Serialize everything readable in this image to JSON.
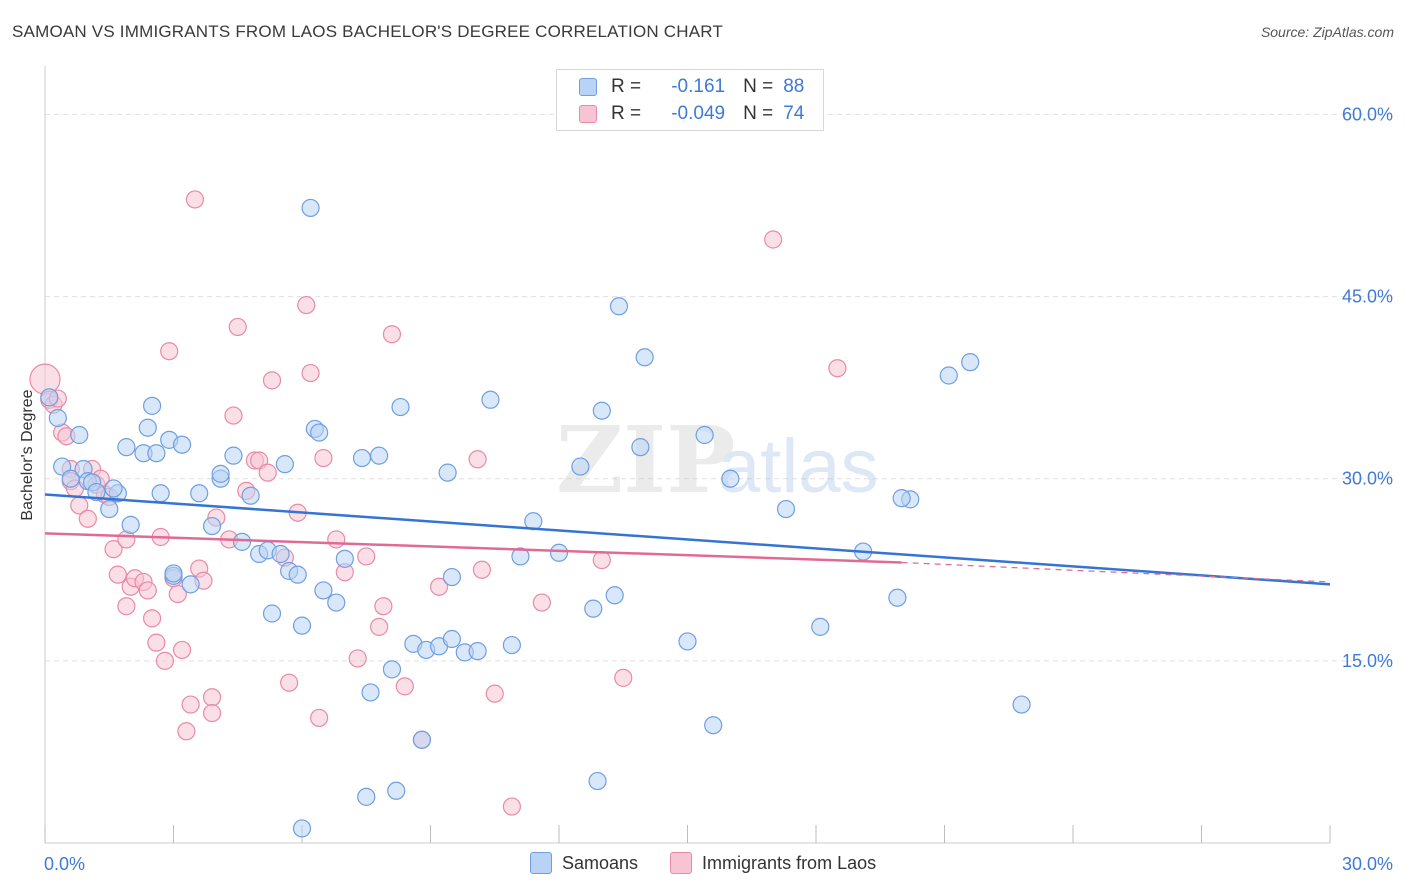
{
  "title": "SAMOAN VS IMMIGRANTS FROM LAOS BACHELOR'S DEGREE CORRELATION CHART",
  "source": "Source: ZipAtlas.com",
  "watermark": {
    "zip": "ZIP",
    "atlas": "atlas"
  },
  "legend": {
    "rows": [
      {
        "r_label": "R =",
        "r_value": "-0.161",
        "n_label": "N =",
        "n_value": "88"
      },
      {
        "r_label": "R =",
        "r_value": "-0.049",
        "n_label": "N =",
        "n_value": "74"
      }
    ]
  },
  "bottom_legend": [
    "Samoans",
    "Immigrants from Laos"
  ],
  "colors": {
    "blue_fill": "#b8d3f4",
    "blue_stroke": "#6f9fe0",
    "blue_line": "#3474d4",
    "pink_fill": "#f7c4d4",
    "pink_stroke": "#e88aa8",
    "pink_line": "#e06a94",
    "grid": "#e0e0e0",
    "tick_text": "#3f7ad6"
  },
  "chart_data": {
    "type": "scatter",
    "title": "SAMOAN VS IMMIGRANTS FROM LAOS BACHELOR'S DEGREE CORRELATION CHART",
    "xlabel": "",
    "ylabel": "Bachelor's Degree",
    "xlim": [
      0,
      30
    ],
    "ylim": [
      0,
      63
    ],
    "x_tick_labels": [
      "0.0%",
      "30.0%"
    ],
    "y_ticks": [
      15,
      30,
      45,
      60
    ],
    "y_tick_labels": [
      "15.0%",
      "30.0%",
      "45.0%",
      "60.0%"
    ],
    "grid": true,
    "legend_position": "top-center",
    "series": [
      {
        "name": "Samoans",
        "r": -0.161,
        "n": 88,
        "trend": {
          "x": [
            0,
            30
          ],
          "y": [
            28.7,
            21.3
          ]
        },
        "points": [
          [
            0.1,
            36.7
          ],
          [
            0.3,
            35.0
          ],
          [
            0.4,
            31.0
          ],
          [
            0.6,
            30.0
          ],
          [
            0.8,
            33.6
          ],
          [
            0.9,
            30.8
          ],
          [
            1.0,
            29.8
          ],
          [
            1.1,
            29.7
          ],
          [
            1.2,
            28.9
          ],
          [
            1.5,
            27.5
          ],
          [
            1.7,
            28.8
          ],
          [
            1.9,
            32.6
          ],
          [
            2.0,
            26.2
          ],
          [
            2.3,
            32.1
          ],
          [
            2.4,
            34.2
          ],
          [
            2.5,
            36.0
          ],
          [
            2.6,
            32.1
          ],
          [
            2.7,
            28.8
          ],
          [
            2.9,
            33.2
          ],
          [
            3.0,
            22.0
          ],
          [
            3.2,
            32.8
          ],
          [
            3.4,
            21.3
          ],
          [
            3.6,
            28.8
          ],
          [
            3.9,
            26.1
          ],
          [
            4.1,
            30.0
          ],
          [
            4.1,
            30.4
          ],
          [
            4.4,
            31.9
          ],
          [
            4.6,
            24.8
          ],
          [
            4.8,
            28.6
          ],
          [
            5.0,
            23.8
          ],
          [
            5.2,
            24.1
          ],
          [
            5.3,
            18.9
          ],
          [
            5.5,
            23.8
          ],
          [
            5.6,
            31.2
          ],
          [
            5.7,
            22.4
          ],
          [
            6.0,
            17.9
          ],
          [
            6.2,
            52.3
          ],
          [
            6.3,
            34.1
          ],
          [
            6.4,
            33.8
          ],
          [
            6.5,
            20.8
          ],
          [
            6.8,
            19.8
          ],
          [
            7.0,
            23.4
          ],
          [
            7.4,
            31.7
          ],
          [
            7.6,
            12.4
          ],
          [
            7.8,
            31.9
          ],
          [
            8.1,
            14.3
          ],
          [
            8.3,
            35.9
          ],
          [
            8.6,
            16.4
          ],
          [
            8.8,
            8.5
          ],
          [
            8.9,
            15.9
          ],
          [
            9.2,
            16.2
          ],
          [
            9.4,
            30.5
          ],
          [
            9.5,
            21.9
          ],
          [
            9.8,
            15.7
          ],
          [
            10.1,
            15.8
          ],
          [
            10.4,
            36.5
          ],
          [
            10.9,
            16.3
          ],
          [
            11.1,
            23.6
          ],
          [
            11.4,
            26.5
          ],
          [
            12.0,
            23.9
          ],
          [
            12.5,
            31.0
          ],
          [
            13.0,
            35.6
          ],
          [
            12.8,
            19.3
          ],
          [
            13.3,
            20.4
          ],
          [
            13.4,
            44.2
          ],
          [
            14.0,
            40.0
          ],
          [
            13.9,
            32.6
          ],
          [
            15.0,
            16.6
          ],
          [
            15.4,
            33.6
          ],
          [
            15.6,
            9.7
          ],
          [
            16.0,
            30.0
          ],
          [
            17.3,
            27.5
          ],
          [
            18.1,
            17.8
          ],
          [
            19.1,
            24.0
          ],
          [
            19.9,
            20.2
          ],
          [
            20.2,
            28.3
          ],
          [
            21.1,
            38.5
          ],
          [
            21.6,
            39.6
          ],
          [
            22.8,
            11.4
          ],
          [
            20.0,
            28.4
          ],
          [
            7.5,
            3.8
          ],
          [
            9.5,
            16.8
          ],
          [
            8.2,
            4.3
          ],
          [
            12.9,
            5.1
          ],
          [
            6.0,
            1.2
          ],
          [
            3.0,
            22.2
          ],
          [
            5.9,
            22.1
          ],
          [
            1.6,
            29.2
          ]
        ]
      },
      {
        "name": "Immigrants from Laos",
        "r": -0.049,
        "n": 74,
        "trend": {
          "x": [
            0,
            20
          ],
          "y": [
            25.5,
            23.1
          ],
          "dashed_to": {
            "x": 30,
            "y": 21.5
          }
        },
        "points": [
          [
            0.0,
            38.2
          ],
          [
            0.1,
            36.5
          ],
          [
            0.2,
            36.1
          ],
          [
            0.3,
            36.6
          ],
          [
            0.4,
            33.8
          ],
          [
            0.5,
            33.5
          ],
          [
            0.6,
            30.8
          ],
          [
            0.6,
            29.8
          ],
          [
            0.7,
            29.2
          ],
          [
            0.8,
            27.8
          ],
          [
            1.0,
            26.7
          ],
          [
            1.1,
            30.8
          ],
          [
            1.2,
            29.5
          ],
          [
            1.3,
            30.0
          ],
          [
            1.4,
            28.7
          ],
          [
            1.5,
            28.5
          ],
          [
            1.6,
            24.2
          ],
          [
            1.7,
            22.1
          ],
          [
            1.9,
            19.5
          ],
          [
            1.9,
            25.0
          ],
          [
            2.0,
            21.1
          ],
          [
            2.1,
            21.8
          ],
          [
            2.3,
            21.5
          ],
          [
            2.4,
            20.8
          ],
          [
            2.5,
            18.5
          ],
          [
            2.6,
            16.5
          ],
          [
            2.7,
            25.2
          ],
          [
            2.8,
            15.0
          ],
          [
            2.9,
            40.5
          ],
          [
            3.0,
            21.8
          ],
          [
            3.1,
            20.5
          ],
          [
            3.2,
            15.9
          ],
          [
            3.3,
            9.2
          ],
          [
            3.4,
            11.4
          ],
          [
            3.5,
            53.0
          ],
          [
            3.6,
            22.6
          ],
          [
            3.7,
            21.6
          ],
          [
            3.9,
            12.0
          ],
          [
            3.9,
            10.7
          ],
          [
            4.0,
            26.8
          ],
          [
            4.3,
            25.0
          ],
          [
            4.4,
            35.2
          ],
          [
            4.5,
            42.5
          ],
          [
            4.7,
            29.0
          ],
          [
            4.9,
            31.5
          ],
          [
            5.0,
            31.5
          ],
          [
            5.2,
            30.5
          ],
          [
            5.3,
            38.1
          ],
          [
            5.6,
            23.5
          ],
          [
            5.7,
            13.2
          ],
          [
            5.9,
            27.2
          ],
          [
            6.1,
            44.3
          ],
          [
            6.2,
            38.7
          ],
          [
            6.4,
            10.3
          ],
          [
            6.5,
            31.7
          ],
          [
            6.8,
            25.0
          ],
          [
            7.0,
            22.3
          ],
          [
            7.3,
            15.2
          ],
          [
            7.5,
            23.6
          ],
          [
            7.8,
            17.8
          ],
          [
            7.9,
            19.5
          ],
          [
            8.1,
            41.9
          ],
          [
            8.4,
            12.9
          ],
          [
            8.8,
            8.5
          ],
          [
            9.2,
            21.1
          ],
          [
            10.1,
            31.6
          ],
          [
            10.2,
            22.5
          ],
          [
            10.5,
            12.3
          ],
          [
            10.9,
            3.0
          ],
          [
            11.6,
            19.8
          ],
          [
            13.0,
            23.3
          ],
          [
            13.5,
            13.6
          ],
          [
            17.0,
            49.7
          ],
          [
            18.5,
            39.1
          ]
        ]
      }
    ]
  }
}
